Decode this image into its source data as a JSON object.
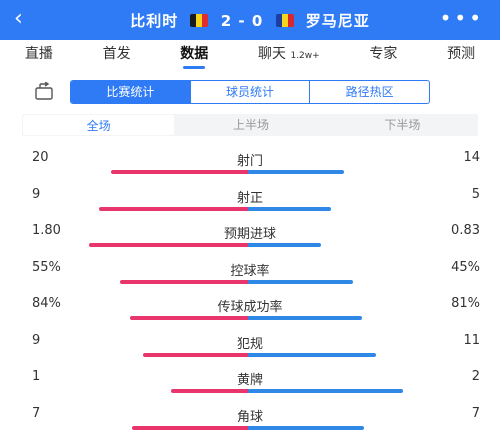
{
  "header": {
    "back_icon": "back-arrow-icon",
    "home_team": "比利时",
    "score": "2 - 0",
    "away_team": "罗马尼亚",
    "home_flag": [
      "#1a1a1a",
      "#f6d31c",
      "#e02c2c"
    ],
    "away_flag": [
      "#1b3fa0",
      "#f6d31c",
      "#d6282e"
    ],
    "more_icon": "more-dots-icon"
  },
  "tabs": [
    {
      "label": "直播"
    },
    {
      "label": "首发"
    },
    {
      "label": "数据",
      "active": true
    },
    {
      "label": "聊天",
      "badge": "1.2w+"
    },
    {
      "label": "专家"
    },
    {
      "label": "预测"
    }
  ],
  "segments": [
    "比赛统计",
    "球员统计",
    "路径热区"
  ],
  "share_icon": "share-export-icon",
  "halves": [
    "全场",
    "上半场",
    "下半场"
  ],
  "colors": {
    "accent": "#2f7bf6",
    "home_bar": "#e8366c",
    "away_bar": "#2f88e6"
  },
  "stats": [
    {
      "name": "射门",
      "home": "20",
      "away": "14",
      "home_share": 0.589,
      "away_share": 0.411
    },
    {
      "name": "射正",
      "home": "9",
      "away": "5",
      "home_share": 0.643,
      "away_share": 0.357
    },
    {
      "name": "预期进球",
      "home": "1.80",
      "away": "0.83",
      "home_share": 0.684,
      "away_share": 0.316
    },
    {
      "name": "控球率",
      "home": "55%",
      "away": "45%",
      "home_share": 0.55,
      "away_share": 0.45
    },
    {
      "name": "传球成功率",
      "home": "84%",
      "away": "81%",
      "home_share": 0.509,
      "away_share": 0.491
    },
    {
      "name": "犯规",
      "home": "9",
      "away": "11",
      "home_share": 0.45,
      "away_share": 0.55
    },
    {
      "name": "黄牌",
      "home": "1",
      "away": "2",
      "home_share": 0.333,
      "away_share": 0.667
    },
    {
      "name": "角球",
      "home": "7",
      "away": "7",
      "home_share": 0.5,
      "away_share": 0.5
    }
  ]
}
